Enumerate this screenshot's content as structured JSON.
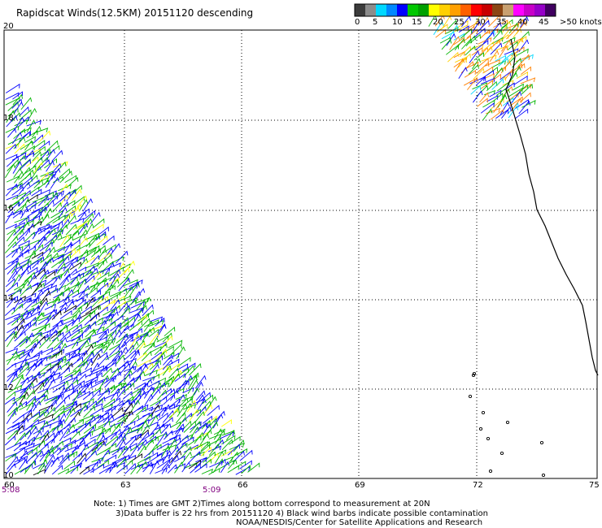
{
  "title": "Rapidscat Winds(12.5KM) 20151120 descending",
  "legend": {
    "colors": [
      "#3c3c3c",
      "#8c8c8c",
      "#00d8ff",
      "#0088ff",
      "#0000ff",
      "#00c800",
      "#00a000",
      "#ffff00",
      "#ffd000",
      "#ffa000",
      "#ff6000",
      "#ff0000",
      "#c80000",
      "#8b4513",
      "#c8a070",
      "#ff00ff",
      "#c800c8",
      "#9600c8",
      "#400060"
    ],
    "labels": [
      "0",
      "5",
      "10",
      "15",
      "20",
      "25",
      "30",
      "35",
      "40",
      "45",
      ">50 knots"
    ]
  },
  "axes": {
    "lon_ticks": [
      "60",
      "63",
      "66",
      "69",
      "72",
      "75"
    ],
    "lat_ticks": [
      "20",
      "18",
      "16",
      "14",
      "12",
      "10"
    ]
  },
  "times": {
    "left": "5:08",
    "right": "5:09"
  },
  "notes": [
    "Note: 1) Times are GMT 2)Times along bottom correspond to measurement at 20N",
    "3)Data buffer is 22 hrs from 20151120 4) Black wind barbs indicate possible contamination",
    "NOAA/NESDIS/Center for Satellite Applications and Research"
  ]
}
